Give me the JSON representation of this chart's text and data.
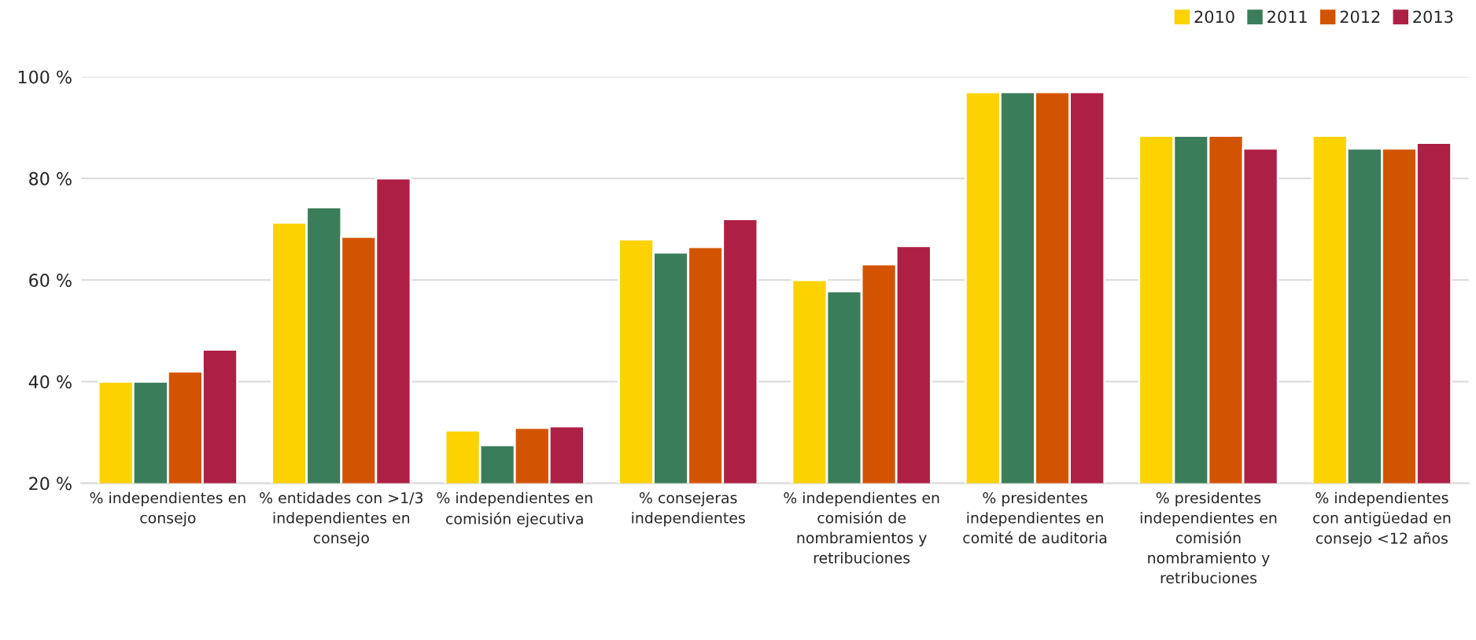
{
  "chart_data": {
    "type": "bar",
    "categories": [
      "% independientes en\nconsejo",
      "% entidades con >1/3\nindependientes en\nconsejo",
      "% independientes en\ncomisión ejecutiva",
      "% consejeras\nindependientes",
      "% independientes en\ncomisión de\nnombramientos y\nretribuciones",
      "% presidentes\nindependientes en\ncomité de auditoria",
      "% presidentes\nindependientes en\ncomisión\nnombramiento y\nretribuciones",
      "% independientes\ncon antigüedad en\nconsejo <12 años"
    ],
    "series": [
      {
        "name": "2010",
        "color": "#fcd200",
        "values": [
          40,
          71.3,
          30.4,
          68,
          60,
          97,
          88.4,
          88.4
        ]
      },
      {
        "name": "2011",
        "color": "#3a7d5a",
        "values": [
          40,
          74.3,
          27.5,
          65.4,
          57.8,
          97,
          88.4,
          85.9
        ]
      },
      {
        "name": "2012",
        "color": "#d35400",
        "values": [
          42,
          68.5,
          30.9,
          66.5,
          63.1,
          97,
          88.4,
          85.9
        ]
      },
      {
        "name": "2013",
        "color": "#ae1f45",
        "values": [
          46.3,
          80,
          31.2,
          72,
          66.7,
          97,
          85.9,
          87
        ]
      }
    ],
    "ylim": [
      20,
      100
    ],
    "yticks": [
      {
        "value": 20,
        "label": "20 %"
      },
      {
        "value": 40,
        "label": "40 %"
      },
      {
        "value": 60,
        "label": "60 %"
      },
      {
        "value": 80,
        "label": "80 %"
      },
      {
        "value": 100,
        "label": "100 %"
      }
    ],
    "grid": "y",
    "legend": "top right"
  }
}
